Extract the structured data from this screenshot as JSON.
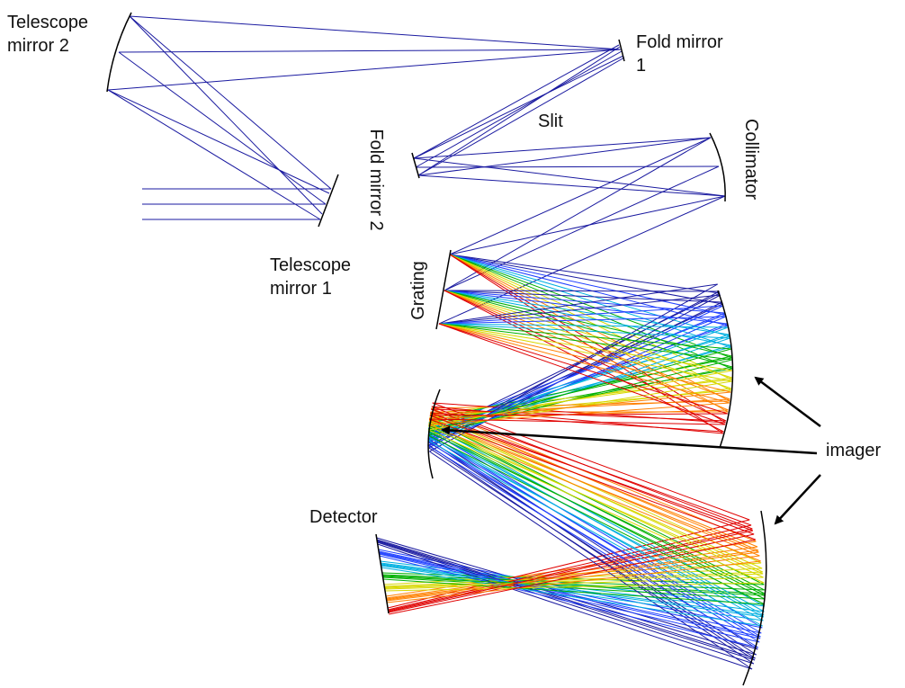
{
  "labels": {
    "telescope_mirror_2": "Telescope mirror 2",
    "telescope_mirror_1": "Telescope mirror 1",
    "fold_mirror_1": "Fold mirror 1",
    "fold_mirror_2": "Fold mirror 2",
    "slit": "Slit",
    "collimator": "Collimator",
    "grating": "Grating",
    "imager": "imager",
    "detector": "Detector"
  }
}
